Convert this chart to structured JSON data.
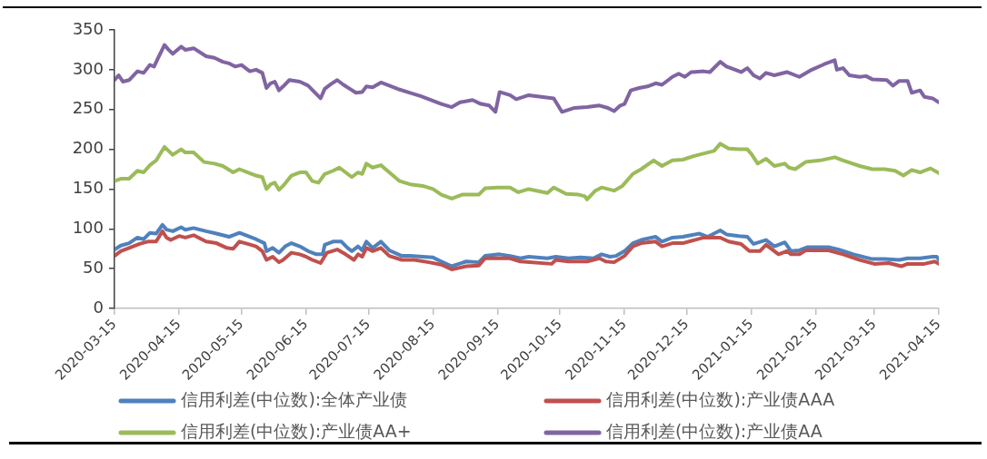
{
  "chart_data": {
    "type": "line",
    "xlim": [
      "2020-03-15",
      "2021-04-15"
    ],
    "xticks": [
      "2020-03-15",
      "2020-04-15",
      "2020-05-15",
      "2020-06-15",
      "2020-07-15",
      "2020-08-15",
      "2020-09-15",
      "2020-10-15",
      "2020-11-15",
      "2020-12-15",
      "2021-01-15",
      "2021-02-15",
      "2021-03-15",
      "2021-04-15"
    ],
    "ylim": [
      0,
      350
    ],
    "yticks": [
      0,
      50,
      100,
      150,
      200,
      250,
      300,
      350
    ],
    "legend": "bottom",
    "marker": "none",
    "line_style": "solid",
    "series": [
      {
        "name": "信用利差(中位数):全体产业债",
        "color": "#4f81bd",
        "x": [
          "2020-03-15",
          "2020-03-18",
          "2020-03-22",
          "2020-03-26",
          "2020-03-29",
          "2020-04-01",
          "2020-04-04",
          "2020-04-07",
          "2020-04-09",
          "2020-04-12",
          "2020-04-16",
          "2020-04-18",
          "2020-04-22",
          "2020-04-28",
          "2020-05-03",
          "2020-05-09",
          "2020-05-14",
          "2020-05-18",
          "2020-05-22",
          "2020-05-26",
          "2020-05-27",
          "2020-05-30",
          "2020-06-02",
          "2020-06-05",
          "2020-06-08",
          "2020-06-12",
          "2020-06-16",
          "2020-06-20",
          "2020-06-23",
          "2020-06-24",
          "2020-06-28",
          "2020-07-02",
          "2020-07-05",
          "2020-07-07",
          "2020-07-10",
          "2020-07-12",
          "2020-07-14",
          "2020-07-17",
          "2020-07-21",
          "2020-07-25",
          "2020-07-31",
          "2020-08-04",
          "2020-08-10",
          "2020-08-15",
          "2020-08-19",
          "2020-08-24",
          "2020-08-31",
          "2020-09-06",
          "2020-09-09",
          "2020-09-16",
          "2020-09-21",
          "2020-09-26",
          "2020-09-30",
          "2020-10-09",
          "2020-10-13",
          "2020-10-19",
          "2020-10-25",
          "2020-10-31",
          "2020-11-04",
          "2020-11-08",
          "2020-11-11",
          "2020-11-15",
          "2020-11-19",
          "2020-11-23",
          "2020-11-30",
          "2020-12-03",
          "2020-12-08",
          "2020-12-13",
          "2020-12-21",
          "2020-12-25",
          "2020-12-31",
          "2021-01-03",
          "2021-01-09",
          "2021-01-13",
          "2021-01-16",
          "2021-01-22",
          "2021-01-26",
          "2021-01-31",
          "2021-02-03",
          "2021-02-07",
          "2021-02-11",
          "2021-02-21",
          "2021-02-26",
          "2021-03-05",
          "2021-03-14",
          "2021-03-20",
          "2021-03-27",
          "2021-03-31",
          "2021-04-06",
          "2021-04-12",
          "2021-04-14",
          "2021-04-15"
        ],
        "values": [
          74,
          79,
          82,
          89,
          87,
          95,
          94,
          105,
          99,
          97,
          102,
          99,
          101,
          97,
          94,
          90,
          95,
          91,
          87,
          82,
          72,
          76,
          70,
          78,
          82,
          78,
          72,
          68,
          68,
          80,
          84,
          84,
          76,
          72,
          78,
          73,
          84,
          76,
          84,
          73,
          66,
          66,
          65,
          64,
          59,
          53,
          59,
          58,
          66,
          68,
          66,
          63,
          65,
          63,
          65,
          63,
          64,
          63,
          68,
          65,
          66,
          72,
          82,
          86,
          90,
          84,
          89,
          90,
          94,
          90,
          98,
          93,
          91,
          90,
          81,
          86,
          78,
          83,
          72,
          73,
          77,
          77,
          74,
          68,
          62,
          62,
          61,
          63,
          63,
          65,
          65,
          61
        ]
      },
      {
        "name": "信用利差(中位数):产业债AAA",
        "color": "#c0504d",
        "x": [
          "2020-03-15",
          "2020-03-18",
          "2020-03-22",
          "2020-03-27",
          "2020-03-31",
          "2020-04-04",
          "2020-04-07",
          "2020-04-09",
          "2020-04-11",
          "2020-04-15",
          "2020-04-18",
          "2020-04-22",
          "2020-04-28",
          "2020-05-03",
          "2020-05-08",
          "2020-05-11",
          "2020-05-14",
          "2020-05-18",
          "2020-05-22",
          "2020-05-25",
          "2020-05-27",
          "2020-05-30",
          "2020-06-02",
          "2020-06-04",
          "2020-06-08",
          "2020-06-12",
          "2020-06-15",
          "2020-06-18",
          "2020-06-22",
          "2020-06-25",
          "2020-06-30",
          "2020-07-04",
          "2020-07-08",
          "2020-07-10",
          "2020-07-12",
          "2020-07-14",
          "2020-07-17",
          "2020-07-21",
          "2020-07-25",
          "2020-07-31",
          "2020-08-06",
          "2020-08-13",
          "2020-08-19",
          "2020-08-24",
          "2020-08-31",
          "2020-09-06",
          "2020-09-09",
          "2020-09-16",
          "2020-09-21",
          "2020-09-26",
          "2020-10-11",
          "2020-10-13",
          "2020-10-19",
          "2020-10-28",
          "2020-11-03",
          "2020-11-06",
          "2020-11-10",
          "2020-11-15",
          "2020-11-19",
          "2020-11-23",
          "2020-11-30",
          "2020-12-03",
          "2020-12-08",
          "2020-12-13",
          "2020-12-23",
          "2020-12-31",
          "2021-01-04",
          "2021-01-10",
          "2021-01-14",
          "2021-01-19",
          "2021-01-22",
          "2021-01-28",
          "2021-02-01",
          "2021-02-03",
          "2021-02-07",
          "2021-02-10",
          "2021-02-21",
          "2021-02-28",
          "2021-03-08",
          "2021-03-15",
          "2021-03-22",
          "2021-03-28",
          "2021-03-31",
          "2021-04-08",
          "2021-04-13",
          "2021-04-15"
        ],
        "values": [
          66,
          72,
          76,
          81,
          84,
          84,
          97,
          89,
          86,
          91,
          89,
          92,
          84,
          82,
          76,
          75,
          84,
          81,
          78,
          72,
          61,
          65,
          58,
          61,
          70,
          68,
          65,
          61,
          57,
          70,
          74,
          68,
          61,
          68,
          65,
          76,
          72,
          76,
          66,
          61,
          61,
          58,
          55,
          49,
          53,
          54,
          63,
          63,
          63,
          59,
          56,
          61,
          59,
          59,
          63,
          59,
          58,
          66,
          78,
          82,
          84,
          78,
          82,
          82,
          89,
          89,
          84,
          81,
          72,
          72,
          80,
          68,
          72,
          68,
          68,
          73,
          73,
          68,
          61,
          56,
          57,
          53,
          56,
          56,
          59,
          56
        ]
      },
      {
        "name": "信用利差(中位数):产业债AA+",
        "color": "#9bbb59",
        "x": [
          "2020-03-15",
          "2020-03-18",
          "2020-03-22",
          "2020-03-26",
          "2020-03-29",
          "2020-04-01",
          "2020-04-04",
          "2020-04-08",
          "2020-04-10",
          "2020-04-12",
          "2020-04-16",
          "2020-04-18",
          "2020-04-22",
          "2020-04-27",
          "2020-05-02",
          "2020-05-06",
          "2020-05-11",
          "2020-05-14",
          "2020-05-18",
          "2020-05-22",
          "2020-05-25",
          "2020-05-27",
          "2020-05-29",
          "2020-05-31",
          "2020-06-02",
          "2020-06-04",
          "2020-06-08",
          "2020-06-12",
          "2020-06-15",
          "2020-06-18",
          "2020-06-21",
          "2020-06-24",
          "2020-06-28",
          "2020-07-01",
          "2020-07-04",
          "2020-07-07",
          "2020-07-10",
          "2020-07-12",
          "2020-07-14",
          "2020-07-17",
          "2020-07-21",
          "2020-07-25",
          "2020-07-30",
          "2020-08-04",
          "2020-08-10",
          "2020-08-15",
          "2020-08-19",
          "2020-08-24",
          "2020-08-29",
          "2020-09-06",
          "2020-09-09",
          "2020-09-15",
          "2020-09-21",
          "2020-09-25",
          "2020-09-30",
          "2020-10-09",
          "2020-10-12",
          "2020-10-18",
          "2020-10-24",
          "2020-10-27",
          "2020-10-28",
          "2020-11-01",
          "2020-11-04",
          "2020-11-10",
          "2020-11-14",
          "2020-11-19",
          "2020-11-23",
          "2020-11-29",
          "2020-12-03",
          "2020-12-08",
          "2020-12-13",
          "2020-12-19",
          "2020-12-25",
          "2020-12-28",
          "2020-12-31",
          "2021-01-04",
          "2021-01-09",
          "2021-01-13",
          "2021-01-15",
          "2021-01-18",
          "2021-01-22",
          "2021-01-26",
          "2021-01-31",
          "2021-02-02",
          "2021-02-05",
          "2021-02-10",
          "2021-02-17",
          "2021-02-24",
          "2021-02-28",
          "2021-03-08",
          "2021-03-14",
          "2021-03-20",
          "2021-03-25",
          "2021-03-29",
          "2021-04-02",
          "2021-04-06",
          "2021-04-11",
          "2021-04-15"
        ],
        "values": [
          160,
          163,
          163,
          173,
          171,
          180,
          186,
          203,
          198,
          193,
          200,
          196,
          196,
          184,
          182,
          179,
          171,
          175,
          171,
          167,
          165,
          150,
          156,
          158,
          149,
          154,
          167,
          171,
          171,
          160,
          158,
          169,
          173,
          177,
          171,
          165,
          171,
          169,
          182,
          177,
          180,
          171,
          160,
          156,
          154,
          150,
          143,
          138,
          143,
          143,
          151,
          152,
          152,
          146,
          150,
          145,
          152,
          144,
          143,
          141,
          137,
          148,
          152,
          148,
          154,
          169,
          175,
          186,
          179,
          186,
          187,
          192,
          196,
          198,
          207,
          201,
          200,
          200,
          194,
          182,
          188,
          179,
          182,
          177,
          175,
          184,
          186,
          190,
          186,
          179,
          175,
          175,
          173,
          167,
          174,
          171,
          176,
          170
        ]
      },
      {
        "name": "信用利差(中位数):产业债AA",
        "color": "#8064a2",
        "x": [
          "2020-03-15",
          "2020-03-17",
          "2020-03-19",
          "2020-03-22",
          "2020-03-26",
          "2020-03-29",
          "2020-04-01",
          "2020-04-03",
          "2020-04-05",
          "2020-04-08",
          "2020-04-10",
          "2020-04-12",
          "2020-04-16",
          "2020-04-18",
          "2020-04-22",
          "2020-04-28",
          "2020-05-02",
          "2020-05-06",
          "2020-05-09",
          "2020-05-12",
          "2020-05-15",
          "2020-05-19",
          "2020-05-22",
          "2020-05-25",
          "2020-05-27",
          "2020-05-29",
          "2020-05-31",
          "2020-06-02",
          "2020-06-04",
          "2020-06-07",
          "2020-06-12",
          "2020-06-16",
          "2020-06-19",
          "2020-06-22",
          "2020-06-24",
          "2020-06-27",
          "2020-06-30",
          "2020-07-03",
          "2020-07-06",
          "2020-07-09",
          "2020-07-12",
          "2020-07-14",
          "2020-07-17",
          "2020-07-21",
          "2020-07-25",
          "2020-07-30",
          "2020-08-04",
          "2020-08-09",
          "2020-08-13",
          "2020-08-19",
          "2020-08-24",
          "2020-08-28",
          "2020-09-03",
          "2020-09-07",
          "2020-09-11",
          "2020-09-14",
          "2020-09-16",
          "2020-09-21",
          "2020-09-24",
          "2020-09-30",
          "2020-10-12",
          "2020-10-15",
          "2020-10-16",
          "2020-10-22",
          "2020-10-28",
          "2020-11-03",
          "2020-11-07",
          "2020-11-10",
          "2020-11-13",
          "2020-11-15",
          "2020-11-18",
          "2020-11-22",
          "2020-11-26",
          "2020-11-30",
          "2020-12-03",
          "2020-12-08",
          "2020-12-11",
          "2020-12-14",
          "2020-12-17",
          "2020-12-23",
          "2020-12-26",
          "2020-12-31",
          "2021-01-03",
          "2021-01-06",
          "2021-01-10",
          "2021-01-13",
          "2021-01-16",
          "2021-01-19",
          "2021-01-22",
          "2021-01-26",
          "2021-02-01",
          "2021-02-07",
          "2021-02-13",
          "2021-02-19",
          "2021-02-24",
          "2021-02-25",
          "2021-02-28",
          "2021-03-03",
          "2021-03-08",
          "2021-03-11",
          "2021-03-14",
          "2021-03-21",
          "2021-03-24",
          "2021-03-27",
          "2021-03-31",
          "2021-04-02",
          "2021-04-06",
          "2021-04-08",
          "2021-04-12",
          "2021-04-15"
        ],
        "values": [
          287,
          293,
          285,
          287,
          298,
          296,
          306,
          304,
          315,
          331,
          325,
          320,
          329,
          325,
          327,
          317,
          315,
          310,
          308,
          304,
          306,
          298,
          300,
          296,
          277,
          283,
          285,
          274,
          279,
          287,
          285,
          280,
          272,
          264,
          276,
          282,
          287,
          281,
          276,
          271,
          272,
          279,
          278,
          284,
          280,
          275,
          271,
          267,
          263,
          257,
          253,
          259,
          262,
          257,
          255,
          247,
          272,
          268,
          263,
          268,
          264,
          251,
          247,
          252,
          253,
          255,
          252,
          248,
          255,
          257,
          274,
          277,
          279,
          283,
          281,
          291,
          295,
          291,
          297,
          298,
          297,
          310,
          304,
          301,
          297,
          302,
          293,
          289,
          296,
          293,
          297,
          291,
          300,
          307,
          312,
          300,
          302,
          293,
          291,
          292,
          288,
          287,
          280,
          286,
          286,
          271,
          274,
          266,
          264,
          259
        ]
      }
    ]
  }
}
